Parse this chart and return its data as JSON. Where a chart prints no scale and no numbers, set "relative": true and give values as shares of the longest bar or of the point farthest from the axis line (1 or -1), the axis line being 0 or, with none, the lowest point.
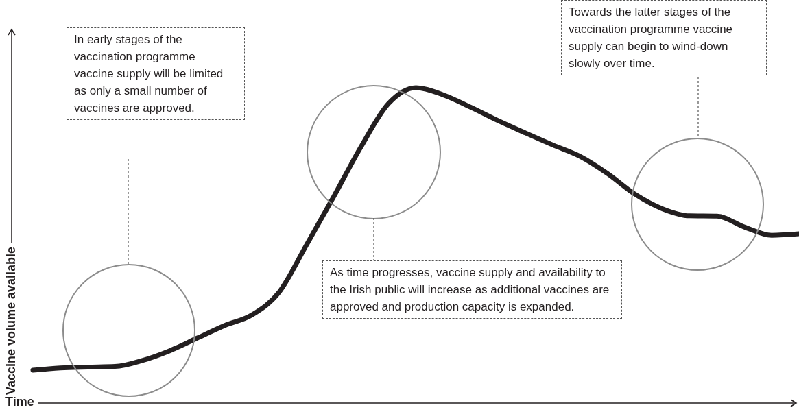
{
  "chart_data": {
    "type": "line",
    "relative": true,
    "xlabel": "Time",
    "ylabel": "Vaccine volume available",
    "color": "#231f20",
    "categories": [
      null,
      null,
      null,
      null,
      null,
      null,
      null,
      null,
      null,
      null,
      null,
      null,
      null,
      null,
      null,
      null,
      null,
      null,
      null,
      null,
      null,
      null,
      null,
      null,
      null,
      null,
      null,
      null,
      null
    ],
    "values": [
      0.012,
      0.02,
      0.023,
      0.025,
      0.046,
      0.08,
      0.124,
      0.168,
      0.205,
      0.285,
      0.45,
      0.62,
      0.795,
      0.945,
      1.0,
      0.975,
      0.932,
      0.885,
      0.842,
      0.8,
      0.76,
      0.7,
      0.628,
      0.577,
      0.552,
      0.551,
      0.513,
      0.484,
      0.489
    ],
    "annotations": [
      "In early stages of the vaccination programme vaccine supply will be limited as only a small number of vaccines are approved.",
      "As time progresses, vaccine supply and availability to the Irish public will increase as additional vaccines are approved and production capacity is expanded.",
      "Towards the latter stages of the vaccination programme vaccine supply can begin to wind-down slowly over time."
    ]
  }
}
